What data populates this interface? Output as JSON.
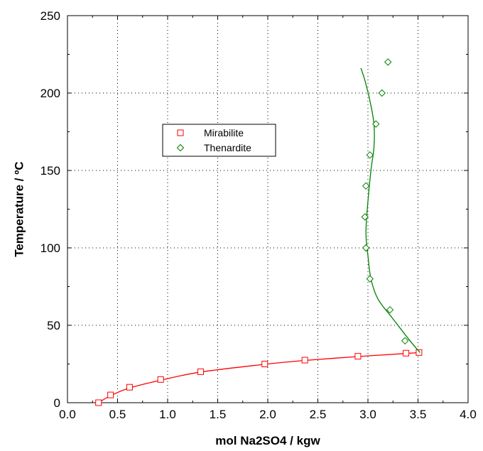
{
  "chart_data": {
    "type": "scatter",
    "title": "",
    "xlabel": "mol Na2SO4 / kgw",
    "ylabel": "Temperature / ºC",
    "xlim": [
      0,
      4
    ],
    "ylim": [
      0,
      250
    ],
    "x_ticks": [
      0,
      0.5,
      1,
      1.5,
      2,
      2.5,
      3,
      3.5,
      4
    ],
    "x_tick_labels": [
      "0.0",
      "0.5",
      "1.0",
      "1.5",
      "2.0",
      "2.5",
      "3.0",
      "3.5",
      "4.0"
    ],
    "y_ticks": [
      0,
      50,
      100,
      150,
      200,
      250
    ],
    "y_tick_labels": [
      "0",
      "50",
      "100",
      "150",
      "200",
      "250"
    ],
    "grid": true,
    "legend_position": "upper-left",
    "series": [
      {
        "name": "Mirabilite",
        "marker": "square",
        "color": "#ff0000",
        "points": [
          [
            0.31,
            0
          ],
          [
            0.43,
            5
          ],
          [
            0.62,
            10
          ],
          [
            0.93,
            15
          ],
          [
            1.33,
            20
          ],
          [
            1.97,
            25
          ],
          [
            2.37,
            27.5
          ],
          [
            2.9,
            30
          ],
          [
            3.38,
            32
          ],
          [
            3.51,
            32.4
          ]
        ],
        "fit": [
          [
            0.31,
            0
          ],
          [
            0.43,
            4.5
          ],
          [
            0.62,
            9.5
          ],
          [
            0.93,
            14.5
          ],
          [
            1.33,
            19.8
          ],
          [
            1.97,
            24.8
          ],
          [
            2.37,
            27.3
          ],
          [
            2.9,
            29.8
          ],
          [
            3.38,
            31.8
          ],
          [
            3.51,
            32.4
          ]
        ]
      },
      {
        "name": "Thenardite",
        "marker": "diamond",
        "color": "#008000",
        "points": [
          [
            3.37,
            40
          ],
          [
            3.22,
            60
          ],
          [
            3.02,
            80
          ],
          [
            2.98,
            100
          ],
          [
            2.97,
            120
          ],
          [
            2.98,
            140
          ],
          [
            3.02,
            160
          ],
          [
            3.08,
            180
          ],
          [
            3.14,
            200
          ],
          [
            3.2,
            220
          ]
        ],
        "fit": [
          [
            3.52,
            32.4
          ],
          [
            3.42,
            40
          ],
          [
            3.24,
            55
          ],
          [
            3.1,
            67
          ],
          [
            3.03,
            80
          ],
          [
            3.0,
            95
          ],
          [
            2.98,
            110
          ],
          [
            3.0,
            130
          ],
          [
            3.03,
            150
          ],
          [
            3.06,
            165
          ],
          [
            3.06,
            180
          ],
          [
            3.02,
            195
          ],
          [
            2.97,
            208
          ],
          [
            2.93,
            216
          ]
        ]
      }
    ]
  }
}
